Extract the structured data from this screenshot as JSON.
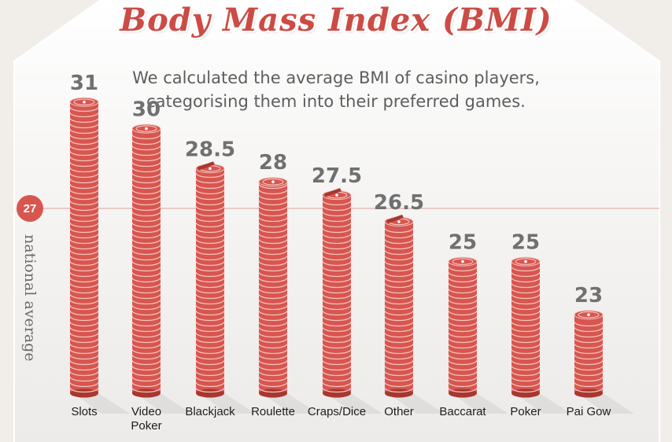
{
  "title": "Body Mass Index (BMI)",
  "subtitle_line_1": "We calculated the average BMI of casino players,",
  "subtitle_line_2": "categorising them into their preferred games.",
  "colors": {
    "chip_red": "#d7564f",
    "chip_dark": "#a8372f",
    "chip_light": "#f2a19b",
    "title_red": "#cc4b45",
    "value_gray": "#707070",
    "panel": "#f7f6f4",
    "background": "#f1eeea"
  },
  "chart_data": {
    "type": "bar",
    "categories": [
      "Slots",
      "Video Poker",
      "Blackjack",
      "Roulette",
      "Craps/Dice",
      "Other",
      "Baccarat",
      "Poker",
      "Pai Gow"
    ],
    "category_lines": [
      [
        "Slots"
      ],
      [
        "Video",
        "Poker"
      ],
      [
        "Blackjack"
      ],
      [
        "Roulette"
      ],
      [
        "Craps/Dice"
      ],
      [
        "Other"
      ],
      [
        "Baccarat"
      ],
      [
        "Poker"
      ],
      [
        "Pai Gow"
      ]
    ],
    "values": [
      31,
      30,
      28.5,
      28,
      27.5,
      26.5,
      25,
      25,
      23
    ],
    "value_labels": [
      "31",
      "30",
      "28.5",
      "28",
      "27.5",
      "26.5",
      "25",
      "25",
      "23"
    ],
    "reference_line": {
      "value": 27,
      "label": "27",
      "text": "national average"
    },
    "bar_style": "stacked casino chips",
    "half_chip_on_top": [
      false,
      false,
      true,
      false,
      true,
      true,
      false,
      false,
      false
    ]
  }
}
